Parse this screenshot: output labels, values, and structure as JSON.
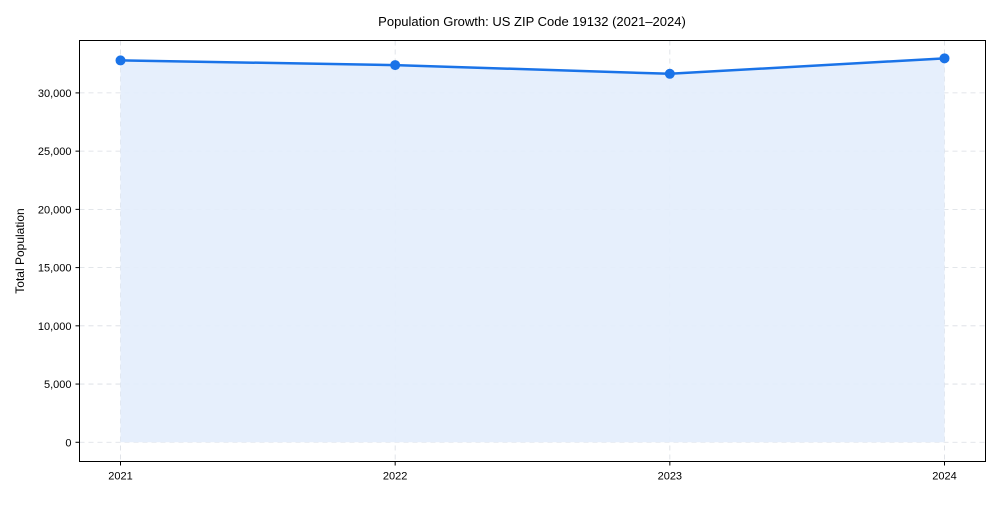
{
  "chart_data": {
    "type": "area",
    "title": "Population Growth: US ZIP Code 19132 (2021–2024)",
    "xlabel": "",
    "ylabel": "Total Population",
    "categories": [
      "2021",
      "2022",
      "2023",
      "2024"
    ],
    "series": [
      {
        "name": "Total Population",
        "values": [
          32790,
          32390,
          31640,
          32970
        ]
      }
    ],
    "ylim": [
      -1650,
      34500
    ],
    "yticks": [
      0,
      5000,
      10000,
      15000,
      20000,
      25000,
      30000
    ],
    "ytick_labels": [
      "0",
      "5,000",
      "10,000",
      "15,000",
      "20,000",
      "25,000",
      "30,000"
    ],
    "grid": true,
    "legend": null
  },
  "colors": {
    "line": "#1a73e8",
    "fill": "#e3edfc",
    "grid": "#d9dde3",
    "axis": "#000000"
  }
}
